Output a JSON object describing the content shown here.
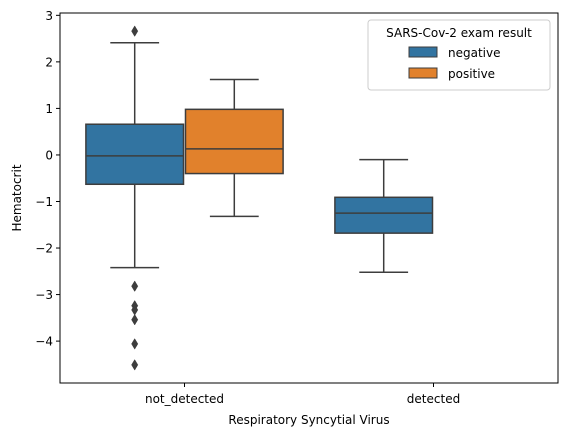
{
  "chart_data": {
    "type": "box",
    "xlabel": "Respiratory Syncytial Virus",
    "ylabel": "Hematocrit",
    "categories": [
      "not_detected",
      "detected"
    ],
    "ylim": [
      -4.9,
      3.05
    ],
    "yticks": [
      -4,
      -3,
      -2,
      -1,
      0,
      1,
      2,
      3
    ],
    "grid": false,
    "legend": {
      "title": "SARS-Cov-2 exam result",
      "placement": "top-right"
    },
    "series": [
      {
        "name": "negative",
        "color": "#3274a1",
        "boxes": [
          {
            "category": "not_detected",
            "whisker_low": -2.42,
            "q1": -0.63,
            "median": -0.02,
            "q3": 0.66,
            "whisker_high": 2.41,
            "outliers": [
              2.66,
              -2.82,
              -3.24,
              -3.33,
              -3.54,
              -4.06,
              -4.51
            ]
          },
          {
            "category": "detected",
            "whisker_low": -2.52,
            "q1": -1.68,
            "median": -1.25,
            "q3": -0.91,
            "whisker_high": -0.1,
            "outliers": []
          }
        ]
      },
      {
        "name": "positive",
        "color": "#e1812c",
        "boxes": [
          {
            "category": "not_detected",
            "whisker_low": -1.32,
            "q1": -0.4,
            "median": 0.13,
            "q3": 0.98,
            "whisker_high": 1.62,
            "outliers": []
          }
        ]
      }
    ]
  }
}
